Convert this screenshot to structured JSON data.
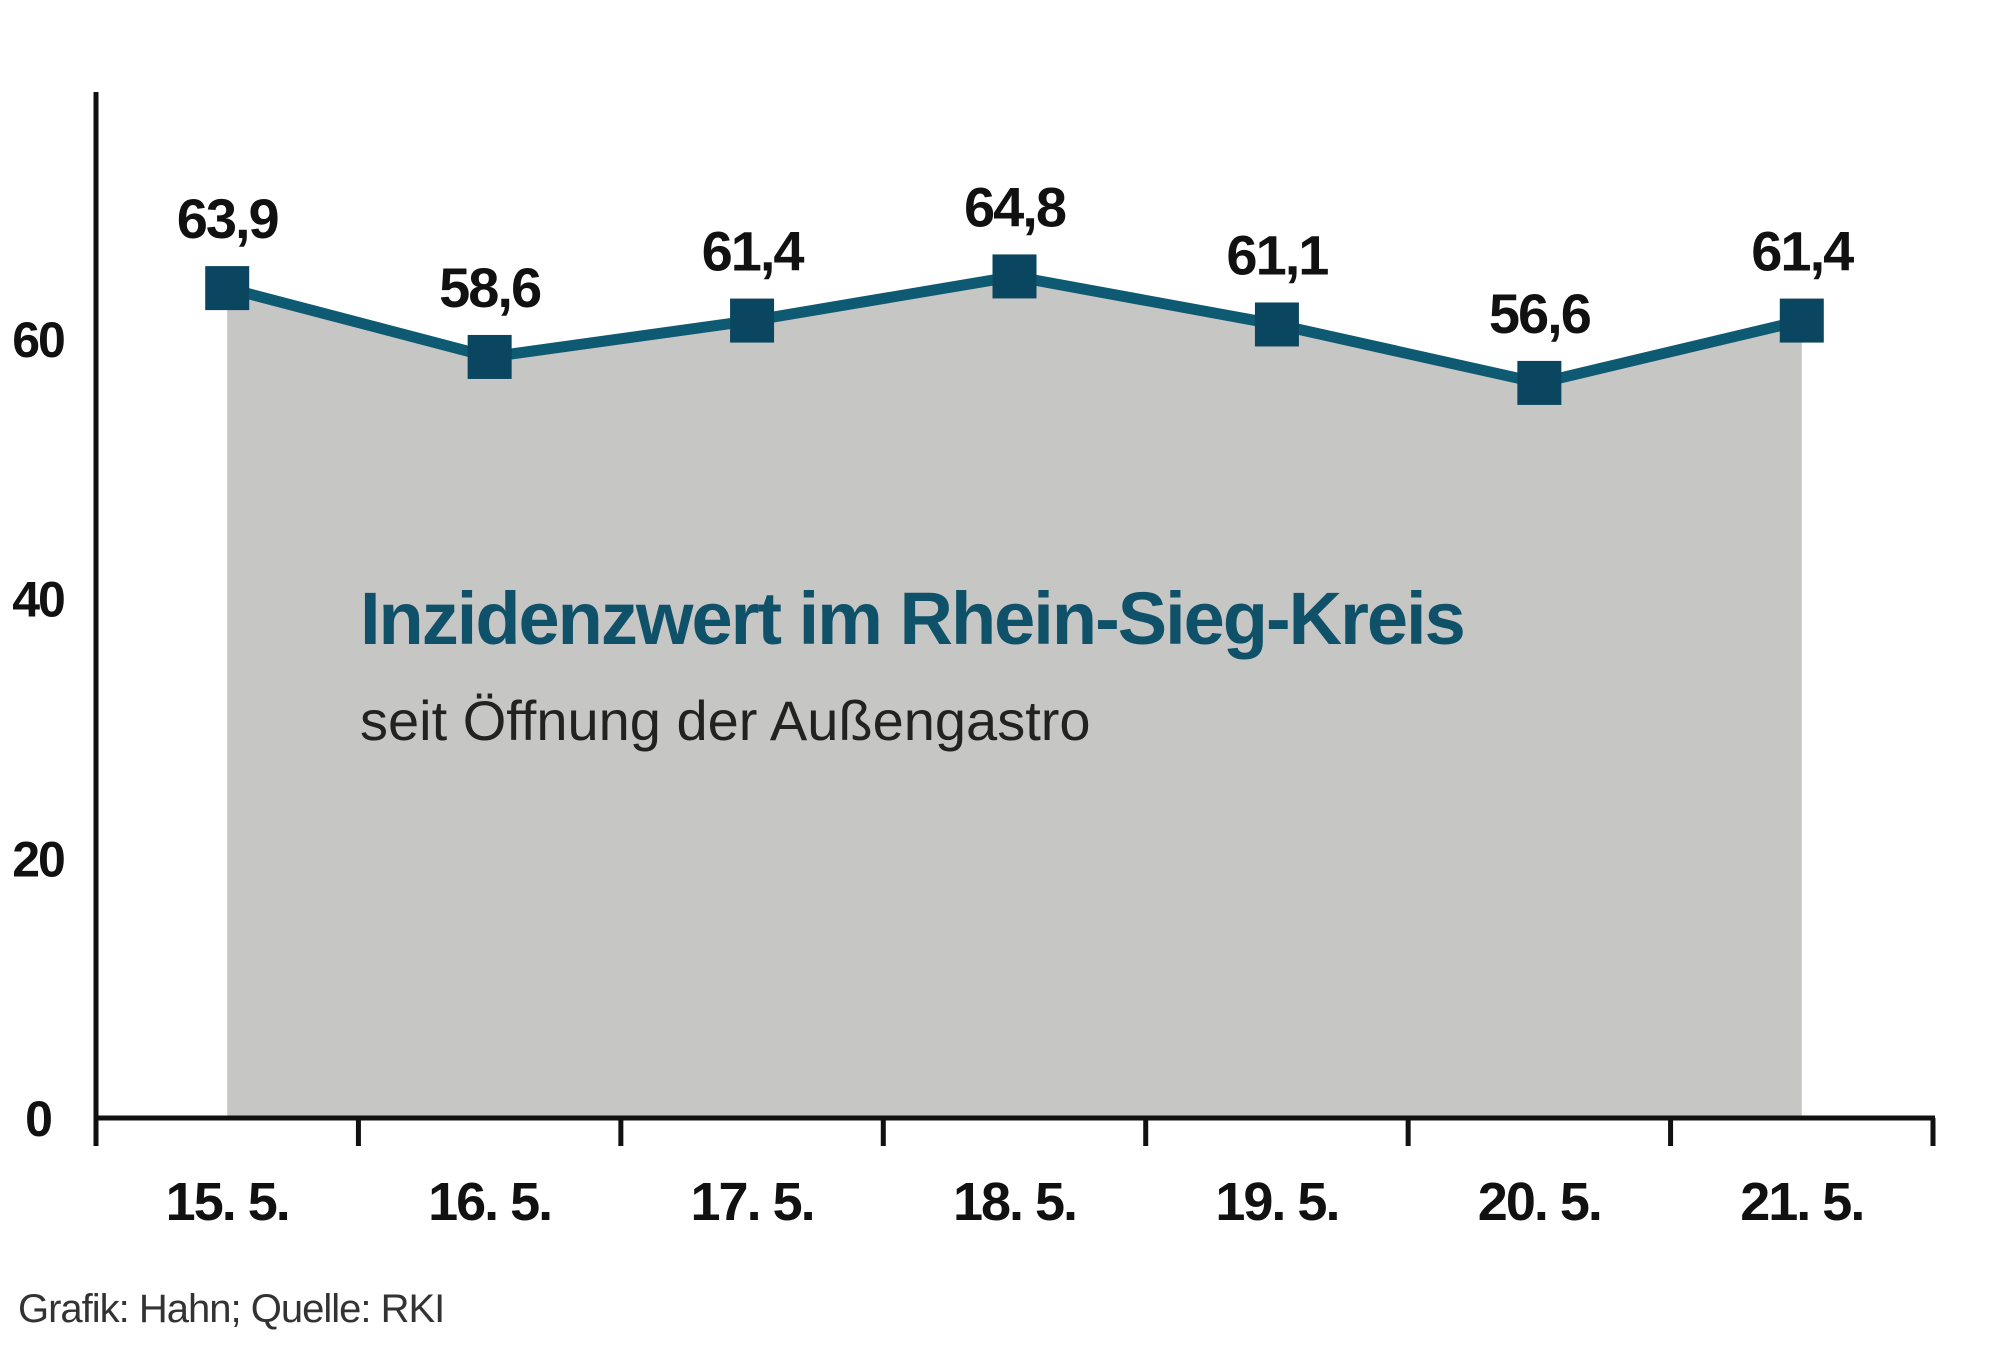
{
  "chart_data": {
    "type": "area",
    "title": "Inzidenzwert im Rhein-Sieg-Kreis",
    "subtitle": "seit Öffnung der Außengastro",
    "source": "Grafik: Hahn; Quelle: RKI",
    "categories": [
      "15. 5.",
      "16. 5.",
      "17. 5.",
      "18. 5.",
      "19. 5.",
      "20. 5.",
      "21. 5."
    ],
    "values": [
      63.9,
      58.6,
      61.4,
      64.8,
      61.1,
      56.6,
      61.4
    ],
    "data_labels": [
      "63,9",
      "58,6",
      "61,4",
      "64,8",
      "61,1",
      "56,6",
      "61,4"
    ],
    "yticks": [
      0,
      20,
      40,
      60
    ],
    "ytick_labels": [
      "0",
      "20",
      "40",
      "60"
    ],
    "ylim": [
      0,
      79
    ],
    "grid": false,
    "colors": {
      "line": "#0e5a72",
      "marker": "#0a4660",
      "fill": "#c6c6c5",
      "title": "#0f5169",
      "text": "#111111"
    }
  }
}
